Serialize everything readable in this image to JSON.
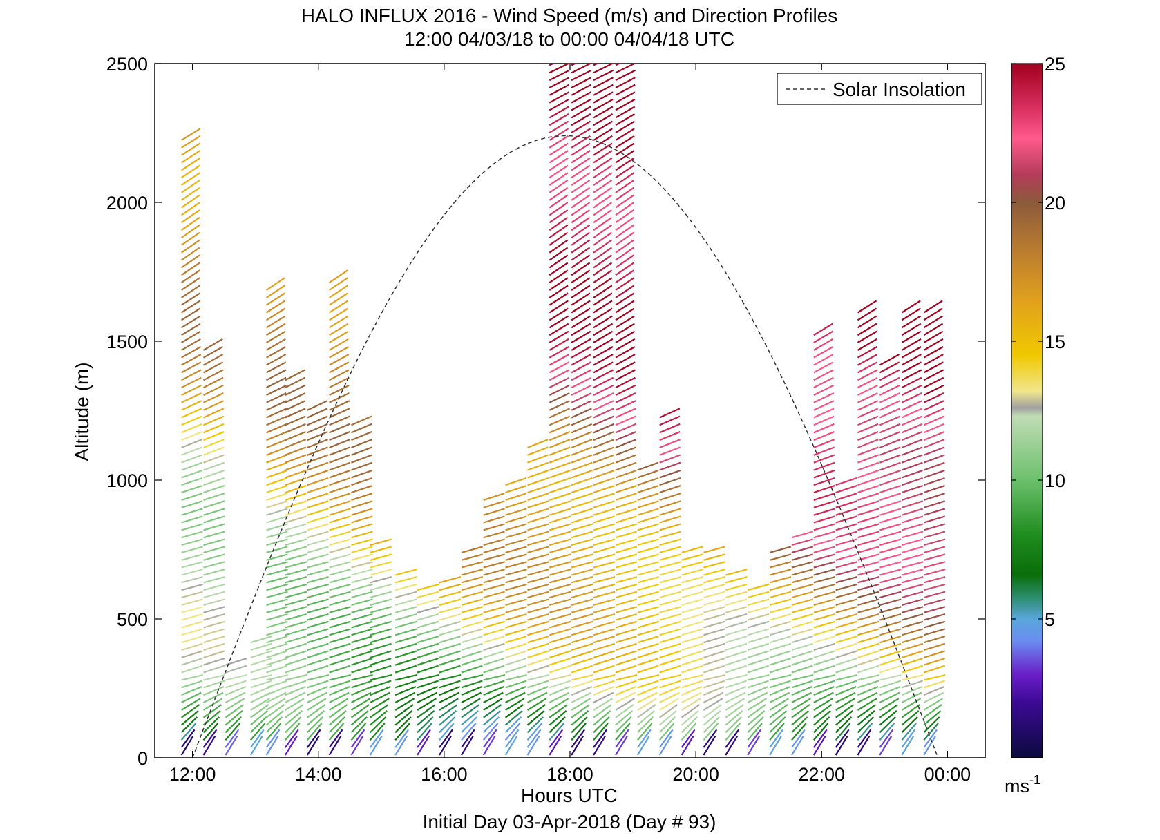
{
  "chart_data": {
    "type": "quiver",
    "title": "HALO INFLUX 2016 - Wind Speed (m/s) and Direction Profiles",
    "subtitle": "12:00 04/03/18 to 00:00 04/04/18  UTC",
    "xlabel": "Hours UTC",
    "ylabel": "Altitude (m)",
    "footer": "Initial Day 03-Apr-2018 (Day # 93)",
    "xlim": [
      11.4,
      24.6
    ],
    "ylim": [
      0,
      2500
    ],
    "x_ticks": [
      12,
      14,
      16,
      18,
      20,
      22,
      24
    ],
    "x_tick_labels": [
      "12:00",
      "14:00",
      "16:00",
      "18:00",
      "20:00",
      "22:00",
      "00:00"
    ],
    "y_ticks": [
      0,
      500,
      1000,
      1500,
      2000,
      2500
    ],
    "y_tick_labels": [
      "0",
      "500",
      "1000",
      "1500",
      "2000",
      "2500"
    ],
    "legend": {
      "label": "Solar Insolation",
      "style": "dashed",
      "position": "top-right"
    },
    "solar_insolation": {
      "start_hour": 12.0,
      "peak_hour": 17.9,
      "end_hour": 23.85,
      "peak_altitude_equiv": 2240
    },
    "colorbar": {
      "min": 0,
      "max": 25,
      "ticks": [
        5,
        10,
        15,
        20,
        25
      ],
      "tick_labels": [
        "5",
        "10",
        "15",
        "20",
        "25"
      ],
      "unit_label": "ms",
      "unit_exponent": "-1",
      "stops": [
        {
          "v": 0,
          "c": "#0a0a3c"
        },
        {
          "v": 2,
          "c": "#3c0a96"
        },
        {
          "v": 3,
          "c": "#6a1ec8"
        },
        {
          "v": 4.2,
          "c": "#6a8cf0"
        },
        {
          "v": 5,
          "c": "#5aa6dc"
        },
        {
          "v": 5.8,
          "c": "#2a8c6a"
        },
        {
          "v": 6.6,
          "c": "#0a6e0a"
        },
        {
          "v": 8,
          "c": "#1e8c1e"
        },
        {
          "v": 10,
          "c": "#6cc06c"
        },
        {
          "v": 12.3,
          "c": "#c0dcb4"
        },
        {
          "v": 12.6,
          "c": "#a0a0a0"
        },
        {
          "v": 13.2,
          "c": "#f0e68c"
        },
        {
          "v": 14.5,
          "c": "#f0c800"
        },
        {
          "v": 16.5,
          "c": "#e0a01e"
        },
        {
          "v": 18.5,
          "c": "#b47832"
        },
        {
          "v": 20,
          "c": "#8c5a3c"
        },
        {
          "v": 21,
          "c": "#b43c5a"
        },
        {
          "v": 22.3,
          "c": "#ff5a8c"
        },
        {
          "v": 23.3,
          "c": "#dc3264"
        },
        {
          "v": 25,
          "c": "#a0001e"
        }
      ]
    },
    "profiles": [
      {
        "hour": 12.0,
        "top": 2240
      },
      {
        "hour": 12.35,
        "top": 1490
      },
      {
        "hour": 12.7,
        "top": 350
      },
      {
        "hour": 13.1,
        "top": 420
      },
      {
        "hour": 13.35,
        "top": 1690
      },
      {
        "hour": 13.65,
        "top": 1360
      },
      {
        "hour": 14.0,
        "top": 1260
      },
      {
        "hour": 14.35,
        "top": 1730
      },
      {
        "hour": 14.7,
        "top": 1210
      },
      {
        "hour": 15.0,
        "top": 790
      },
      {
        "hour": 15.4,
        "top": 660
      },
      {
        "hour": 15.75,
        "top": 620
      },
      {
        "hour": 16.1,
        "top": 640
      },
      {
        "hour": 16.45,
        "top": 750
      },
      {
        "hour": 16.8,
        "top": 950
      },
      {
        "hour": 17.15,
        "top": 1000
      },
      {
        "hour": 17.5,
        "top": 1130
      },
      {
        "hour": 17.85,
        "top": 2500
      },
      {
        "hour": 18.2,
        "top": 2500
      },
      {
        "hour": 18.55,
        "top": 2500
      },
      {
        "hour": 18.9,
        "top": 2500
      },
      {
        "hour": 19.25,
        "top": 1050
      },
      {
        "hour": 19.6,
        "top": 1250
      },
      {
        "hour": 19.95,
        "top": 750
      },
      {
        "hour": 20.3,
        "top": 760
      },
      {
        "hour": 20.65,
        "top": 660
      },
      {
        "hour": 21.0,
        "top": 620
      },
      {
        "hour": 21.35,
        "top": 760
      },
      {
        "hour": 21.7,
        "top": 800
      },
      {
        "hour": 22.05,
        "top": 1540
      },
      {
        "hour": 22.4,
        "top": 990
      },
      {
        "hour": 22.75,
        "top": 1610
      },
      {
        "hour": 23.1,
        "top": 1440
      },
      {
        "hour": 23.45,
        "top": 1620
      },
      {
        "hour": 23.8,
        "top": 1610
      }
    ]
  }
}
